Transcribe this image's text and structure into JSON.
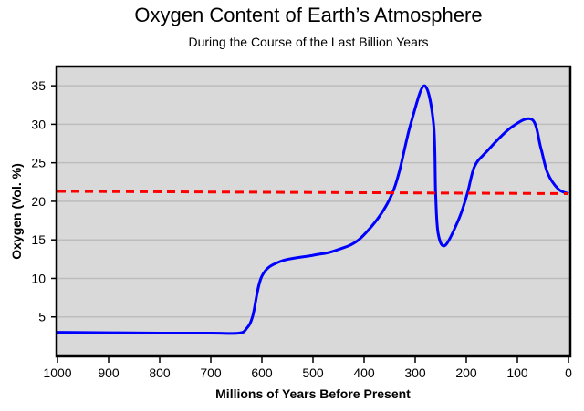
{
  "chart_data": {
    "type": "line",
    "title": "Oxygen Content of Earth’s Atmosphere",
    "subtitle": "During the Course of the Last Billion Years",
    "xlabel": "Millions of Years Before Present",
    "ylabel": "Oxygen (Vol. %)",
    "xlim": [
      1000,
      0
    ],
    "ylim": [
      0,
      37.5
    ],
    "xticks": [
      1000,
      900,
      800,
      700,
      600,
      500,
      400,
      300,
      200,
      100,
      0
    ],
    "yticks": [
      5,
      10,
      15,
      20,
      25,
      30,
      35
    ],
    "grid": "horizontal",
    "background": "#d9d9d9",
    "series": [
      {
        "color": "#0000ff",
        "style": "solid",
        "x": [
          1000,
          800,
          700,
          645,
          630,
          618,
          600,
          564,
          500,
          457,
          404,
          345,
          309,
          282,
          264,
          260,
          255,
          241,
          214,
          198,
          184,
          161,
          112,
          71,
          54,
          41,
          20,
          0
        ],
        "y": [
          3.0,
          2.9,
          2.9,
          2.9,
          3.5,
          5.1,
          10.3,
          12.2,
          13.0,
          13.6,
          15.4,
          21.0,
          30.0,
          35.0,
          30.0,
          21.0,
          15.8,
          14.3,
          17.8,
          21.0,
          24.5,
          26.4,
          29.6,
          30.6,
          26.9,
          23.7,
          21.6,
          21.0
        ]
      },
      {
        "color": "#ff0000",
        "style": "dashed",
        "x": [
          1000,
          0
        ],
        "y": [
          21.3,
          21.0
        ]
      }
    ]
  }
}
